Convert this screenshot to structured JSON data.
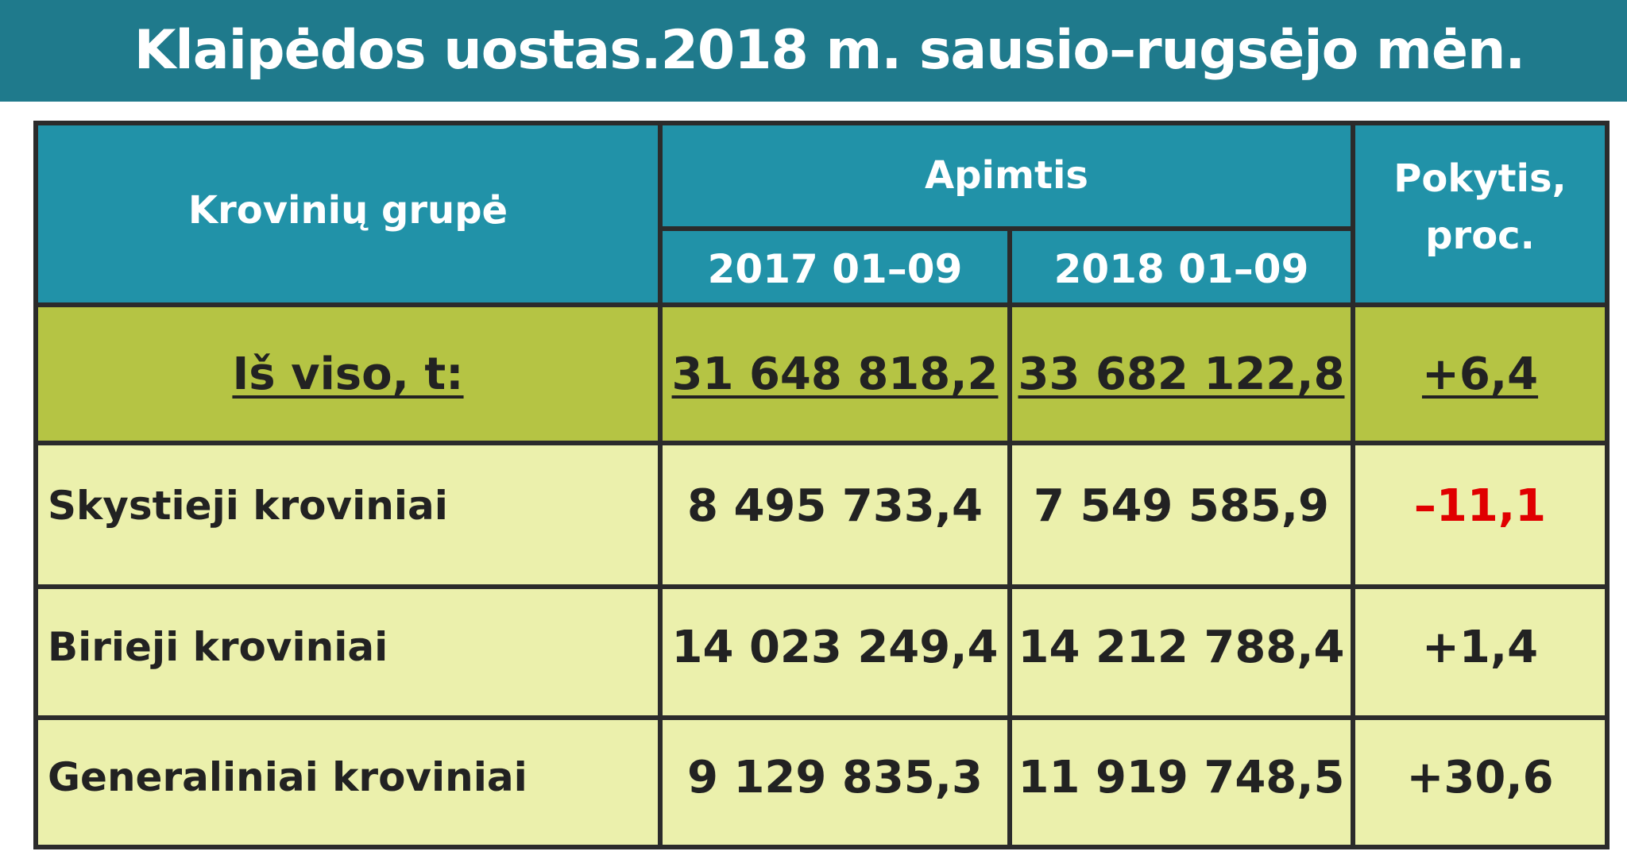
{
  "page": {
    "title": "Klaipėdos uostas.2018 m. sausio–rugsėjo mėn."
  },
  "table": {
    "headers": {
      "group": "Krovinių grupė",
      "volume": "Apimtis",
      "period_2017": "2017 01–09",
      "period_2018": "2018 01–09",
      "change": "Pokytis, proc."
    },
    "total": {
      "label": "Iš viso, t:",
      "v2017": "31 648 818,2",
      "v2018": "33 682 122,8",
      "change": "+6,4"
    },
    "rows": [
      {
        "label": "Skystieji kroviniai",
        "v2017": "8 495 733,4",
        "v2018": "7 549 585,9",
        "change": "–11,1"
      },
      {
        "label": "Birieji kroviniai",
        "v2017": "14 023 249,4",
        "v2018": "14 212 788,4",
        "change": "+1,4"
      },
      {
        "label": "Generaliniai kroviniai",
        "v2017": "9 129 835,3",
        "v2018": "11 919 748,5",
        "change": "+30,6"
      }
    ]
  },
  "colors": {
    "banner": "#1f7a8c",
    "header": "#2192a8",
    "total_row": "#b5c444",
    "data_row": "#ebf0ac",
    "negative": "#e00000"
  }
}
